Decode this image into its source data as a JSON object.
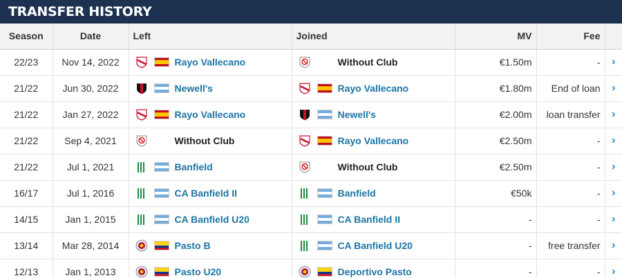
{
  "title": "TRANSFER HISTORY",
  "columns": {
    "season": "Season",
    "date": "Date",
    "left": "Left",
    "joined": "Joined",
    "mv": "MV",
    "fee": "Fee"
  },
  "rows": [
    {
      "season": "22/23",
      "date": "Nov 14, 2022",
      "left": {
        "club": "Rayo Vallecano",
        "crest": "rayo-crest-icon",
        "flag": "spain-flag-icon",
        "linked": true
      },
      "joined": {
        "club": "Without Club",
        "crest": "without-club-icon",
        "flag": "",
        "linked": false
      },
      "mv": "€1.50m",
      "fee": "-"
    },
    {
      "season": "21/22",
      "date": "Jun 30, 2022",
      "left": {
        "club": "Newell's",
        "crest": "newells-crest-icon",
        "flag": "argentina-flag-icon",
        "linked": true
      },
      "joined": {
        "club": "Rayo Vallecano",
        "crest": "rayo-crest-icon",
        "flag": "spain-flag-icon",
        "linked": true
      },
      "mv": "€1.80m",
      "fee": "End of loan"
    },
    {
      "season": "21/22",
      "date": "Jan 27, 2022",
      "left": {
        "club": "Rayo Vallecano",
        "crest": "rayo-crest-icon",
        "flag": "spain-flag-icon",
        "linked": true
      },
      "joined": {
        "club": "Newell's",
        "crest": "newells-crest-icon",
        "flag": "argentina-flag-icon",
        "linked": true
      },
      "mv": "€2.00m",
      "fee": "loan transfer"
    },
    {
      "season": "21/22",
      "date": "Sep 4, 2021",
      "left": {
        "club": "Without Club",
        "crest": "without-club-icon",
        "flag": "",
        "linked": false
      },
      "joined": {
        "club": "Rayo Vallecano",
        "crest": "rayo-crest-icon",
        "flag": "spain-flag-icon",
        "linked": true
      },
      "mv": "€2.50m",
      "fee": "-"
    },
    {
      "season": "21/22",
      "date": "Jul 1, 2021",
      "left": {
        "club": "Banfield",
        "crest": "banfield-crest-icon",
        "flag": "argentina-flag-icon",
        "linked": true
      },
      "joined": {
        "club": "Without Club",
        "crest": "without-club-icon",
        "flag": "",
        "linked": false
      },
      "mv": "€2.50m",
      "fee": "-"
    },
    {
      "season": "16/17",
      "date": "Jul 1, 2016",
      "left": {
        "club": "CA Banfield II",
        "crest": "banfield-crest-icon",
        "flag": "argentina-flag-icon",
        "linked": true
      },
      "joined": {
        "club": "Banfield",
        "crest": "banfield-crest-icon",
        "flag": "argentina-flag-icon",
        "linked": true
      },
      "mv": "€50k",
      "fee": "-"
    },
    {
      "season": "14/15",
      "date": "Jan 1, 2015",
      "left": {
        "club": "CA Banfield U20",
        "crest": "banfield-crest-icon",
        "flag": "argentina-flag-icon",
        "linked": true
      },
      "joined": {
        "club": "CA Banfield II",
        "crest": "banfield-crest-icon",
        "flag": "argentina-flag-icon",
        "linked": true
      },
      "mv": "-",
      "fee": "-"
    },
    {
      "season": "13/14",
      "date": "Mar 28, 2014",
      "left": {
        "club": "Pasto B",
        "crest": "pasto-crest-icon",
        "flag": "colombia-flag-icon",
        "linked": true
      },
      "joined": {
        "club": "CA Banfield U20",
        "crest": "banfield-crest-icon",
        "flag": "argentina-flag-icon",
        "linked": true
      },
      "mv": "-",
      "fee": "free transfer"
    },
    {
      "season": "12/13",
      "date": "Jan 1, 2013",
      "left": {
        "club": "Pasto U20",
        "crest": "pasto-crest-icon",
        "flag": "colombia-flag-icon",
        "linked": true
      },
      "joined": {
        "club": "Deportivo Pasto",
        "crest": "pasto-crest-icon",
        "flag": "colombia-flag-icon",
        "linked": true
      },
      "mv": "-",
      "fee": "-"
    }
  ],
  "colors": {
    "title_bg": "#1d3150",
    "link": "#1d75a3",
    "arrow": "#1d8ad0"
  }
}
